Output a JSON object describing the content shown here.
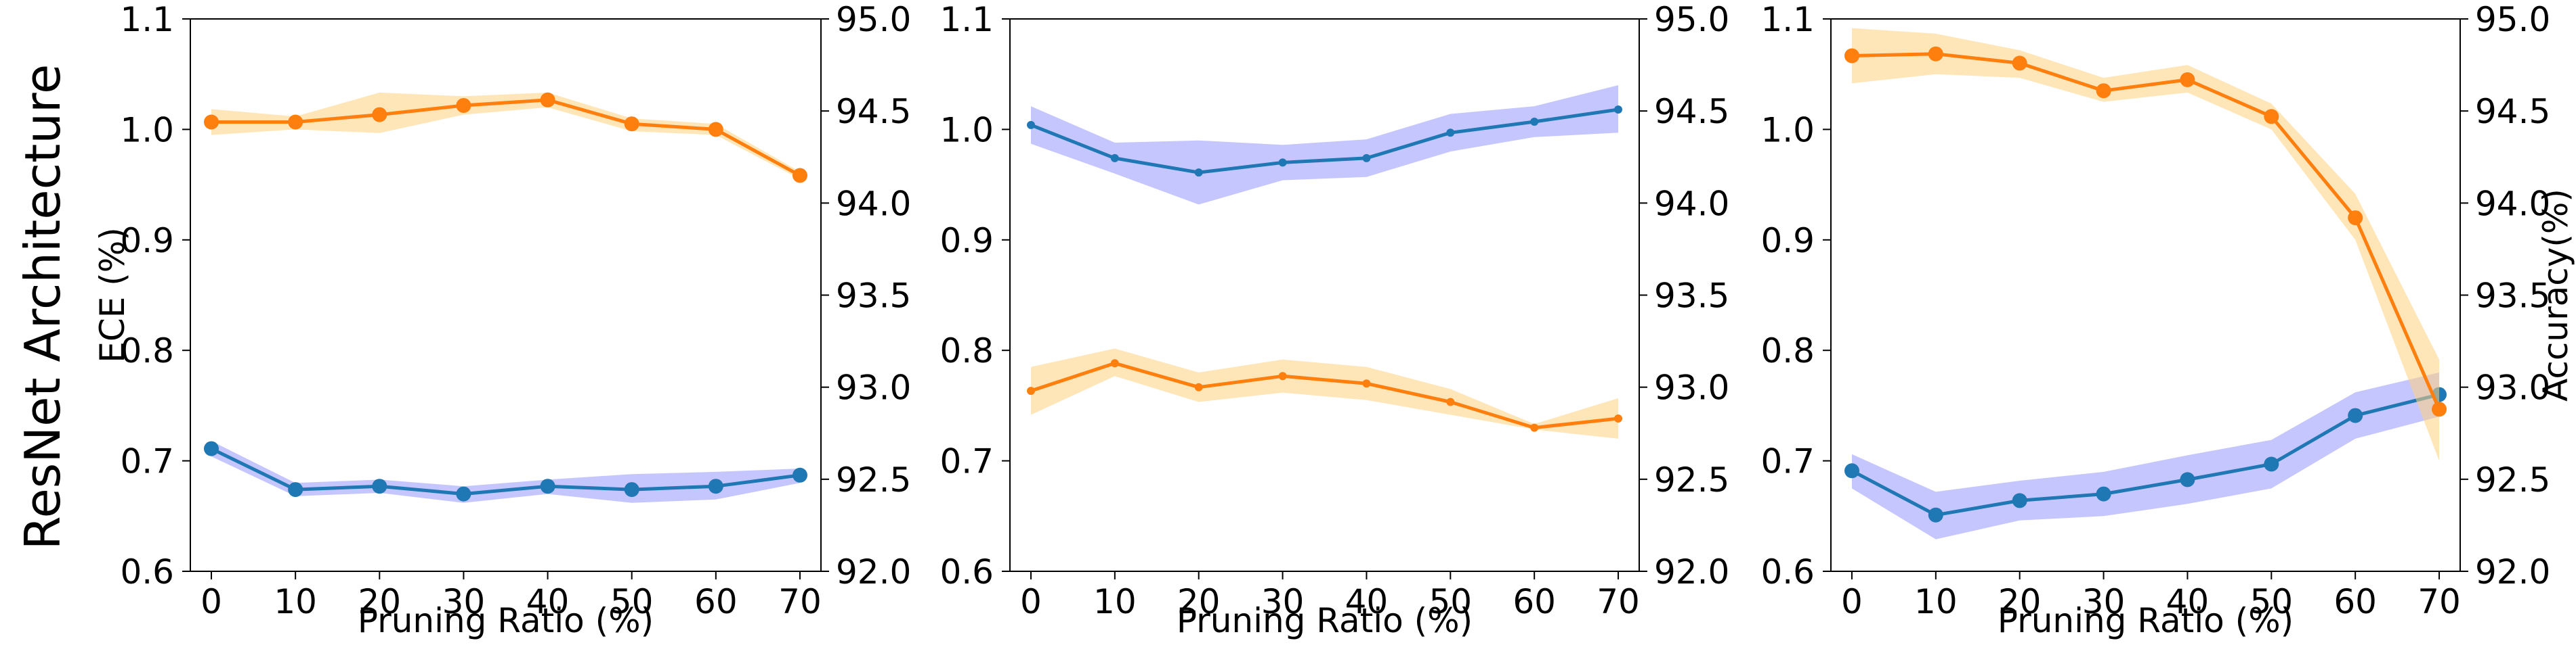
{
  "figure": {
    "row_label": "ResNet Architecture"
  },
  "colors": {
    "ece": "#1f77b4",
    "ece_band": "#8080ff",
    "accuracy": "#ff7f0e",
    "accuracy_band": "#ffd27f"
  },
  "chart_data": [
    {
      "type": "line",
      "xlabel": "Pruning Ratio (%)",
      "ylabel": "ECE (%)",
      "y2label": "",
      "x": [
        0,
        10,
        20,
        30,
        40,
        50,
        60,
        70
      ],
      "xticks": [
        "0",
        "10",
        "20",
        "30",
        "40",
        "50",
        "60",
        "70"
      ],
      "xlim": [
        -2.5,
        72.5
      ],
      "ylim": [
        0.6,
        1.1
      ],
      "yticks": [
        "0.6",
        "0.7",
        "0.8",
        "0.9",
        "1.0",
        "1.1"
      ],
      "y2lim": [
        92.0,
        95.0
      ],
      "y2ticks": [
        "92.0",
        "92.5",
        "93.0",
        "93.5",
        "94.0",
        "94.5",
        "95.0"
      ],
      "marker_size": "large",
      "grid": false,
      "series": [
        {
          "key": "ece",
          "axis": "left",
          "values": [
            0.711,
            0.674,
            0.677,
            0.67,
            0.677,
            0.674,
            0.677,
            0.687
          ],
          "band_low": [
            0.704,
            0.668,
            0.671,
            0.662,
            0.67,
            0.662,
            0.665,
            0.68
          ],
          "band_high": [
            0.718,
            0.68,
            0.683,
            0.677,
            0.683,
            0.688,
            0.69,
            0.693
          ]
        },
        {
          "key": "accuracy",
          "axis": "right",
          "values": [
            94.44,
            94.44,
            94.48,
            94.53,
            94.56,
            94.43,
            94.4,
            94.15
          ],
          "band_low": [
            94.37,
            94.4,
            94.38,
            94.48,
            94.52,
            94.39,
            94.37,
            94.13
          ],
          "band_high": [
            94.51,
            94.47,
            94.6,
            94.58,
            94.6,
            94.46,
            94.43,
            94.17
          ]
        }
      ]
    },
    {
      "type": "line",
      "xlabel": "Pruning Ratio (%)",
      "ylabel": "",
      "y2label": "",
      "x": [
        0,
        10,
        20,
        30,
        40,
        50,
        60,
        70
      ],
      "xticks": [
        "0",
        "10",
        "20",
        "30",
        "40",
        "50",
        "60",
        "70"
      ],
      "xlim": [
        -2.5,
        72.5
      ],
      "ylim": [
        0.6,
        1.1
      ],
      "yticks": [
        "0.6",
        "0.7",
        "0.8",
        "0.9",
        "1.0",
        "1.1"
      ],
      "y2lim": [
        92.0,
        95.0
      ],
      "y2ticks": [
        "92.0",
        "92.5",
        "93.0",
        "93.5",
        "94.0",
        "94.5",
        "95.0"
      ],
      "marker_size": "small",
      "grid": false,
      "series": [
        {
          "key": "ece",
          "axis": "left",
          "values": [
            1.004,
            0.974,
            0.961,
            0.97,
            0.974,
            0.997,
            1.007,
            1.018
          ],
          "band_low": [
            0.987,
            0.96,
            0.932,
            0.954,
            0.957,
            0.98,
            0.993,
            0.997
          ],
          "band_high": [
            1.021,
            0.988,
            0.99,
            0.986,
            0.991,
            1.014,
            1.021,
            1.04
          ]
        },
        {
          "key": "accuracy",
          "axis": "right",
          "values": [
            92.98,
            93.13,
            93.0,
            93.06,
            93.02,
            92.92,
            92.78,
            92.83
          ],
          "band_low": [
            92.85,
            93.06,
            92.92,
            92.97,
            92.93,
            92.85,
            92.77,
            92.72
          ],
          "band_high": [
            93.11,
            93.21,
            93.08,
            93.15,
            93.11,
            92.99,
            92.8,
            92.94
          ]
        }
      ]
    },
    {
      "type": "line",
      "xlabel": "Pruning Ratio (%)",
      "ylabel": "",
      "y2label": "Accuracy(%)",
      "x": [
        0,
        10,
        20,
        30,
        40,
        50,
        60,
        70
      ],
      "xticks": [
        "0",
        "10",
        "20",
        "30",
        "40",
        "50",
        "60",
        "70"
      ],
      "xlim": [
        -2.5,
        72.5
      ],
      "ylim": [
        0.6,
        1.1
      ],
      "yticks": [
        "0.6",
        "0.7",
        "0.8",
        "0.9",
        "1.0",
        "1.1"
      ],
      "y2lim": [
        92.0,
        95.0
      ],
      "y2ticks": [
        "92.0",
        "92.5",
        "93.0",
        "93.5",
        "94.0",
        "94.5",
        "95.0"
      ],
      "marker_size": "large",
      "grid": false,
      "series": [
        {
          "key": "ece",
          "axis": "left",
          "values": [
            0.691,
            0.651,
            0.664,
            0.67,
            0.683,
            0.697,
            0.741,
            0.76
          ],
          "band_low": [
            0.675,
            0.629,
            0.646,
            0.65,
            0.661,
            0.675,
            0.72,
            0.74
          ],
          "band_high": [
            0.706,
            0.672,
            0.682,
            0.69,
            0.705,
            0.719,
            0.762,
            0.78
          ]
        },
        {
          "key": "accuracy",
          "axis": "right",
          "values": [
            94.8,
            94.81,
            94.76,
            94.61,
            94.67,
            94.47,
            93.92,
            92.88
          ],
          "band_low": [
            94.65,
            94.7,
            94.68,
            94.55,
            94.6,
            94.4,
            93.8,
            92.6
          ],
          "band_high": [
            94.95,
            94.92,
            94.83,
            94.68,
            94.75,
            94.54,
            94.05,
            93.15
          ]
        }
      ]
    }
  ]
}
